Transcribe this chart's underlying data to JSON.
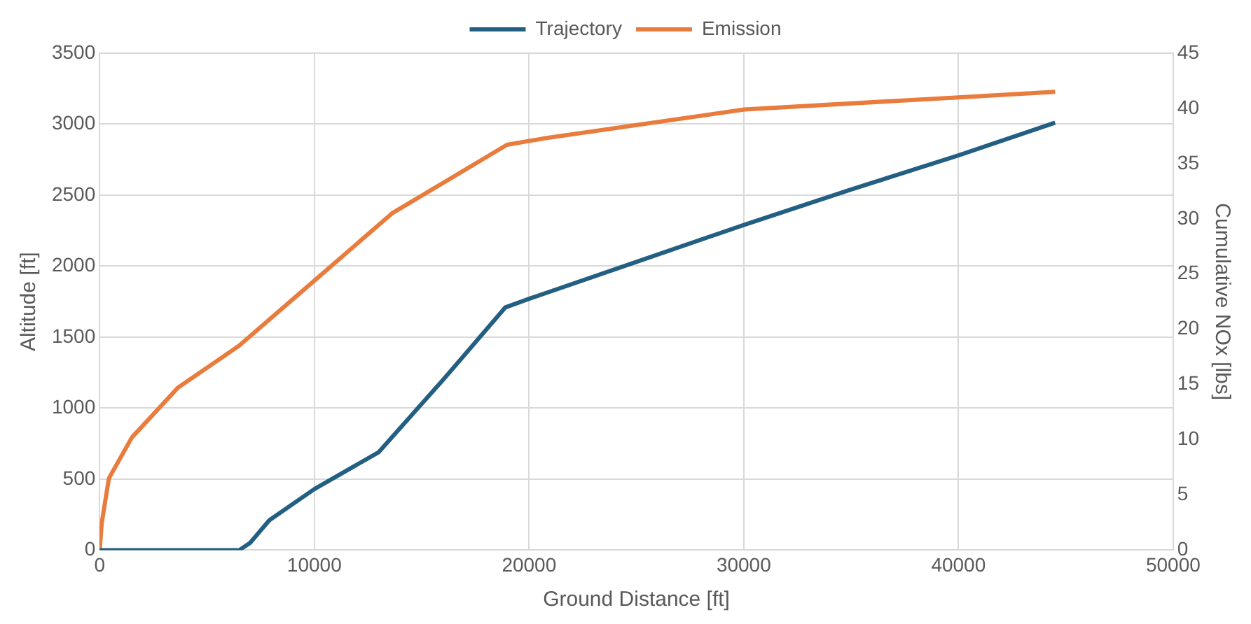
{
  "chart_data": {
    "type": "line",
    "xlabel": "Ground Distance [ft]",
    "ylabel": "Altitude [ft]",
    "y2label": "Cumulative NOx [lbs]",
    "xlim": [
      0,
      50000
    ],
    "xticks": [
      0,
      10000,
      20000,
      30000,
      40000,
      50000
    ],
    "ylim": [
      0,
      3500
    ],
    "yticks": [
      0,
      500,
      1000,
      1500,
      2000,
      2500,
      3000,
      3500
    ],
    "y2lim": [
      0,
      45
    ],
    "y2ticks": [
      0,
      5,
      10,
      15,
      20,
      25,
      30,
      35,
      40,
      45
    ],
    "grid": true,
    "legend": "top",
    "marker": "none",
    "series": [
      {
        "name": "Trajectory",
        "color": "#235f83",
        "x": [
          0,
          3000,
          6500,
          7000,
          7900,
          10000,
          13000,
          16000,
          18900,
          20000,
          25000,
          30000,
          35000,
          40000,
          44500
        ],
        "values": [
          0,
          0,
          0,
          50,
          210,
          430,
          690,
          1200,
          1710,
          1770,
          2030,
          2290,
          2540,
          2780,
          3010
        ]
      },
      {
        "name": "Emission",
        "color": "#e97b3c",
        "axis": "y2",
        "x": [
          0,
          100,
          430,
          1500,
          3640,
          6490,
          10060,
          13620,
          18970,
          20760,
          30030,
          40000,
          44500
        ],
        "values": [
          0,
          2.5,
          6.5,
          10.2,
          14.7,
          18.5,
          24.5,
          30.5,
          36.7,
          37.3,
          39.9,
          41.0,
          41.5
        ]
      }
    ]
  }
}
